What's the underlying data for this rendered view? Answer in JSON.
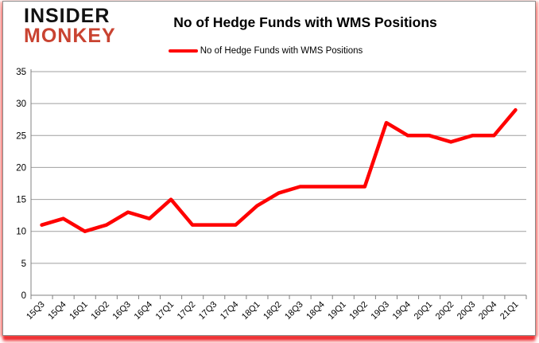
{
  "branding": {
    "logo_line1": "INSIDER",
    "logo_line2": "MONKEY",
    "logo_color_primary": "#111111",
    "logo_color_secondary": "#c94331"
  },
  "header": {
    "title": "No of Hedge Funds with WMS Positions"
  },
  "legend": {
    "label": "No of Hedge Funds with WMS Positions"
  },
  "chart_data": {
    "type": "line",
    "title": "No of Hedge Funds with WMS Positions",
    "categories": [
      "15Q3",
      "15Q4",
      "16Q1",
      "16Q2",
      "16Q3",
      "16Q4",
      "17Q1",
      "17Q2",
      "17Q3",
      "17Q4",
      "18Q1",
      "18Q2",
      "18Q3",
      "18Q4",
      "19Q1",
      "19Q2",
      "19Q3",
      "19Q4",
      "20Q1",
      "20Q2",
      "20Q3",
      "20Q4",
      "21Q1"
    ],
    "series": [
      {
        "name": "No of Hedge Funds with WMS Positions",
        "color": "#ff0000",
        "values": [
          11,
          12,
          10,
          11,
          13,
          12,
          15,
          11,
          11,
          11,
          14,
          16,
          17,
          17,
          17,
          17,
          27,
          25,
          25,
          24,
          25,
          25,
          29
        ]
      }
    ],
    "ylim": [
      0,
      35
    ],
    "ytick_interval": 5,
    "yticks": [
      0,
      5,
      10,
      15,
      20,
      25,
      30,
      35
    ],
    "grid": true,
    "legend_position": "top",
    "xlabel": "",
    "ylabel": ""
  },
  "colors": {
    "line": "#ff0000",
    "gridline": "#9f9f9f",
    "axis": "#808080",
    "text": "#000000"
  }
}
